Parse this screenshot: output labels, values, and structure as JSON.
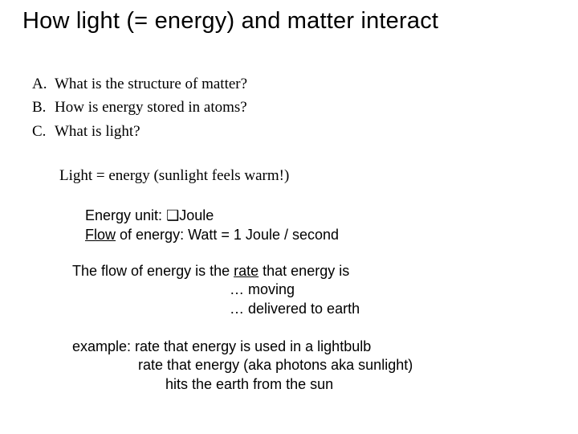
{
  "colors": {
    "background": "#ffffff",
    "text": "#000000"
  },
  "typography": {
    "title_family": "Arial",
    "title_size_pt": 29,
    "title_weight": 400,
    "list_family": "Times New Roman",
    "list_size_pt": 19,
    "body_family": "Arial",
    "body_size_pt": 18
  },
  "title": "How light (= energy) and matter interact",
  "list": {
    "items": [
      {
        "letter": "A.",
        "text": "What is the structure of matter?"
      },
      {
        "letter": "B.",
        "text": "How is energy stored in atoms?"
      },
      {
        "letter": "C.",
        "text": "What is light?"
      }
    ]
  },
  "subline": "Light = energy  (sunlight feels warm!)",
  "energy": {
    "line1_prefix": "Energy unit:   ",
    "line1_bullet": "❑",
    "line1_suffix": "Joule",
    "line2_underlined": "Flow",
    "line2_rest": " of energy:  Watt = 1 Joule / second"
  },
  "flow": {
    "line1_a": "The flow of energy is the ",
    "line1_rate": "rate",
    "line1_b": " that energy is",
    "line2": "… moving",
    "line3": "… delivered to earth"
  },
  "example": {
    "line1": "example:  rate that energy is used in a lightbulb",
    "line2": "rate that energy (aka photons aka sunlight)",
    "line3": "hits the earth from the sun"
  }
}
